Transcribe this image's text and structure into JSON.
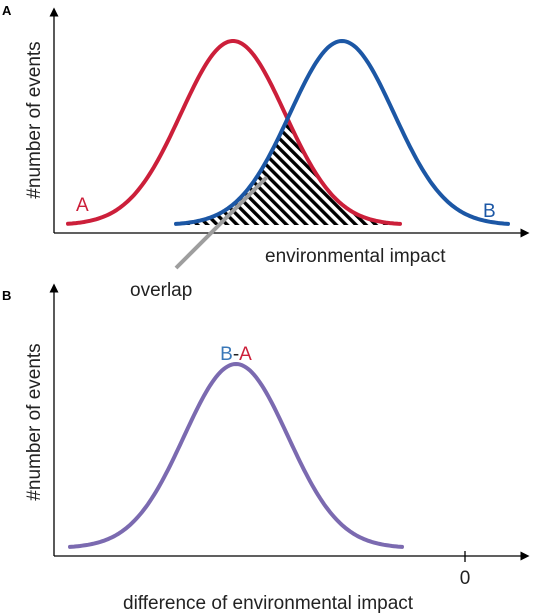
{
  "panel_a": {
    "label": "A",
    "y_axis_title": "#number of events",
    "x_axis_title": "environmental impact",
    "overlap_label": "overlap",
    "curves": [
      {
        "name": "A",
        "color": "#cc1f3a"
      },
      {
        "name": "B",
        "color": "#1c57a5"
      }
    ],
    "overlap_hatch_color": "#000000",
    "pointer_color": "#9e9e9e"
  },
  "panel_b": {
    "label": "B",
    "y_axis_title": "#number of events",
    "x_axis_title": "difference of environmental impact",
    "zero_tick_label": "0",
    "curve_label_part1": "B",
    "curve_label_separator": "-",
    "curve_label_part2": "A",
    "curve_label_part1_color": "#3a78b8",
    "curve_label_part2_color": "#cc1f3a",
    "curve_color": "#7b6ab0"
  }
}
